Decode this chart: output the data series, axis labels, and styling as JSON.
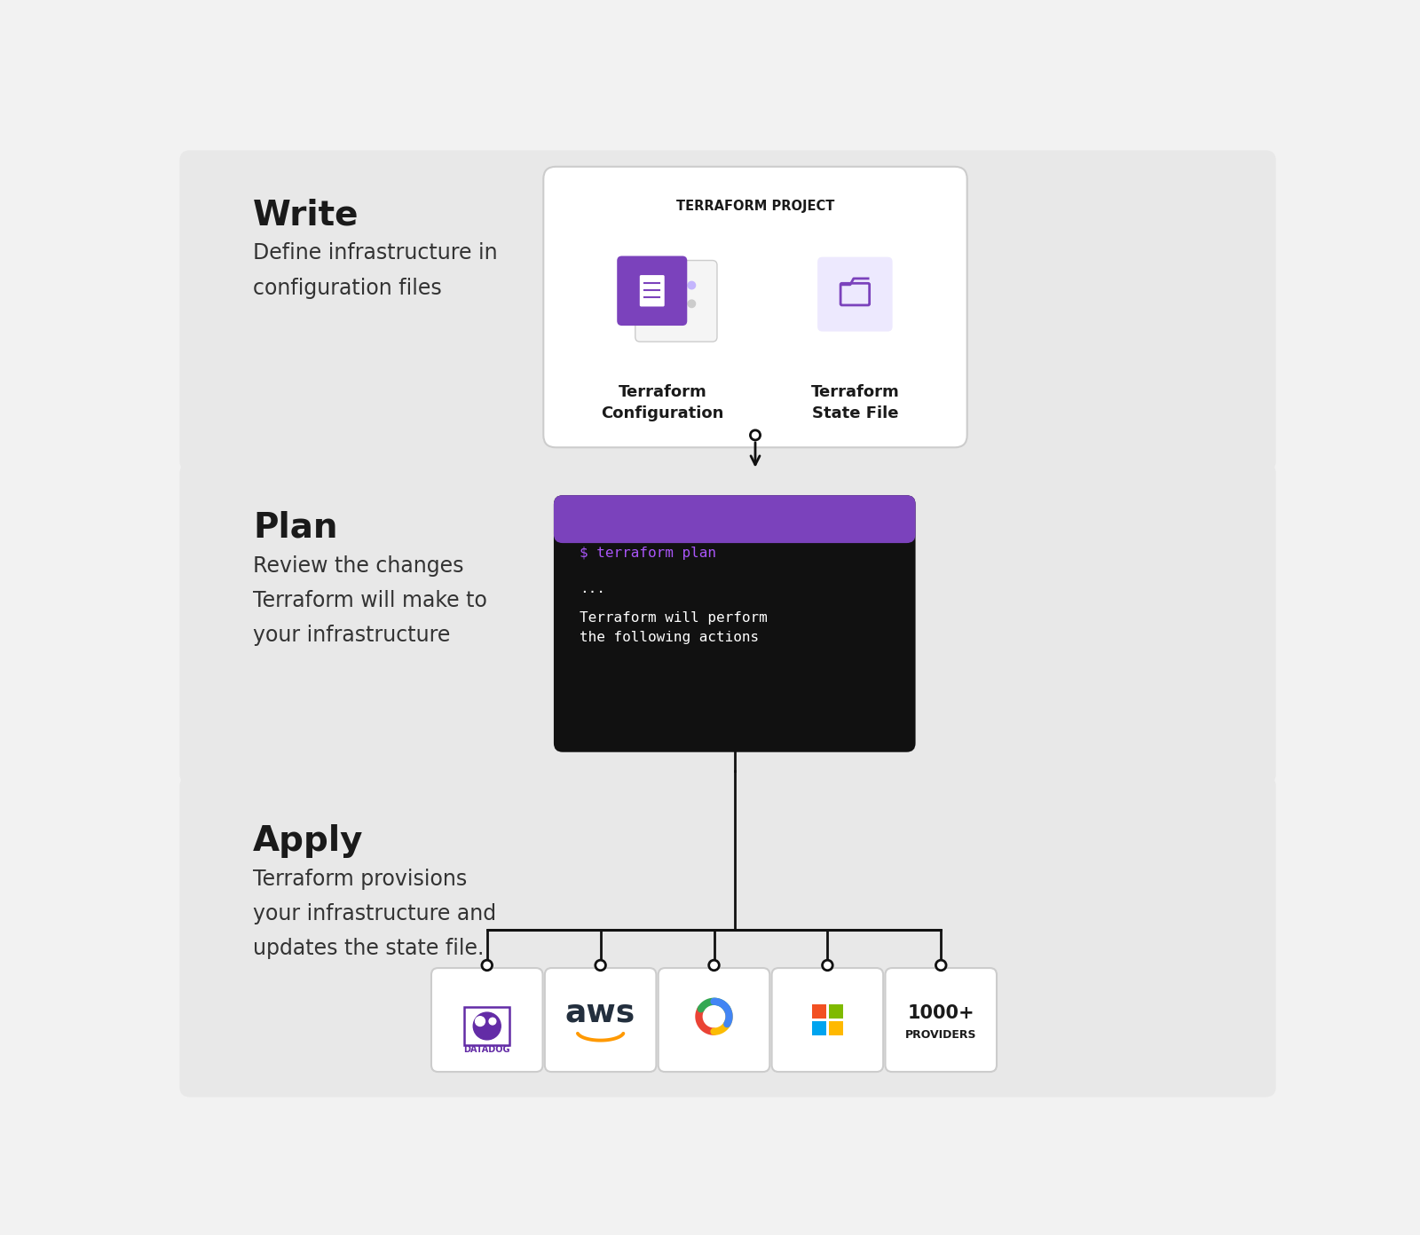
{
  "bg_color": "#f2f2f2",
  "section_bg": "#e8e8e8",
  "white": "#ffffff",
  "black": "#111111",
  "dark_text": "#1a1a1a",
  "body_text": "#333333",
  "purple_dark": "#7B42BC",
  "purple_light": "#c4b5fd",
  "purple_lighter": "#ede9fe",
  "terminal_bg": "#111111",
  "terminal_purple_text": "#a855f7",
  "border_color": "#cccccc",
  "write_title": "Write",
  "write_desc": "Define infrastructure in\nconfiguration files",
  "plan_title": "Plan",
  "plan_desc": "Review the changes\nTerraform will make to\nyour infrastructure",
  "apply_title": "Apply",
  "apply_desc": "Terraform provisions\nyour infrastructure and\nupdates the state file.",
  "tf_project_title": "TERRAFORM PROJECT",
  "tf_config_label": "Terraform\nConfiguration",
  "tf_state_label": "Terraform\nState File",
  "term_line1": "$ terraform plan",
  "term_line2": "...",
  "term_line3": "Terraform will perform\nthe following actions",
  "aws_orange": "#FF9900",
  "aws_dark": "#232F3E",
  "gcp_red": "#EA4335",
  "gcp_yellow": "#FBBC04",
  "gcp_green": "#34A853",
  "gcp_blue": "#4285F4",
  "ms_red": "#F25022",
  "ms_green": "#7FBA00",
  "ms_blue": "#00A4EF",
  "ms_yellow": "#FFB900",
  "datadog_purple": "#632CA6",
  "provider_labels": [
    "1000+",
    "PROVIDERS"
  ]
}
